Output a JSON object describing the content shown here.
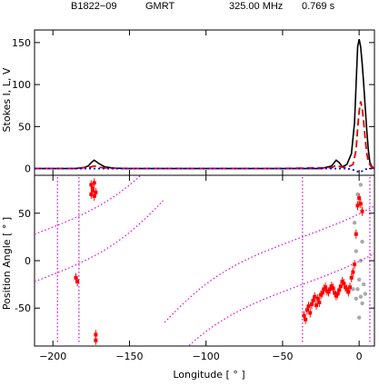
{
  "header": {
    "pulsar": "B1822−09",
    "telescope": "GMRT",
    "frequency": "325.00 MHz",
    "period": "0.769 s"
  },
  "chart_data": [
    {
      "type": "line",
      "panel": "top",
      "ylabel": "Stokes I, L, V",
      "xlim": [
        -212,
        10
      ],
      "ylim": [
        -8,
        165
      ],
      "yticks": [
        0,
        50,
        100,
        150
      ],
      "series": [
        {
          "name": "I",
          "color": "#000000",
          "style": "solid",
          "x": [
            -212,
            -186,
            -180,
            -177,
            -175,
            -173,
            -170,
            -166,
            -160,
            -150,
            -120,
            -60,
            -25,
            -18,
            -15,
            -13,
            -11,
            -8,
            -5,
            -3,
            -2,
            -1,
            0,
            1,
            2,
            3,
            4,
            5,
            6,
            7,
            8,
            10
          ],
          "y": [
            0,
            0,
            1,
            3,
            7,
            10,
            6,
            2,
            0.5,
            0,
            0,
            0,
            0,
            3,
            10,
            7,
            2,
            5,
            18,
            55,
            100,
            145,
            154,
            145,
            125,
            100,
            72,
            45,
            22,
            8,
            3,
            0
          ]
        },
        {
          "name": "L",
          "color": "#e00000",
          "style": "dashed",
          "x": [
            -212,
            -186,
            -175,
            -173,
            -170,
            -165,
            -150,
            -60,
            -18,
            -15,
            -12,
            -8,
            -4,
            -2,
            -1,
            0,
            1,
            2,
            3,
            4,
            5,
            6,
            8,
            10
          ],
          "y": [
            0,
            0,
            2,
            3,
            1.5,
            0.5,
            0,
            0,
            1,
            4,
            2,
            1,
            5,
            22,
            48,
            68,
            80,
            72,
            55,
            35,
            18,
            8,
            2,
            0
          ]
        },
        {
          "name": "V",
          "color": "#0000e0",
          "style": "dotted",
          "x": [
            -212,
            -60,
            -8,
            -5,
            -3,
            -2,
            0,
            2,
            4,
            6,
            8,
            10
          ],
          "y": [
            0,
            0,
            0,
            -1,
            -2,
            -3,
            -4,
            -3,
            -1,
            0,
            0,
            0
          ]
        }
      ]
    },
    {
      "type": "scatter",
      "panel": "bottom",
      "xlabel": "Longitude [ ° ]",
      "ylabel": "Position Angle [ ° ]",
      "xlim": [
        -212,
        10
      ],
      "ylim": [
        -90,
        90
      ],
      "xticks": [
        -200,
        -150,
        -100,
        -50,
        0
      ],
      "yticks": [
        -50,
        0,
        50
      ],
      "points": {
        "color": "#ff0000",
        "x": [
          -175,
          -174,
          -173,
          -172,
          -175,
          -174,
          -173,
          -185,
          -184,
          -172,
          -172,
          -36,
          -35,
          -34,
          -33,
          -32,
          -31,
          -30,
          -29,
          -28,
          -27,
          -26,
          -25,
          -24,
          -23,
          -22,
          -21,
          -20,
          -19,
          -18,
          -17,
          -16,
          -15,
          -14,
          -13,
          -12,
          -11,
          -10,
          -9,
          -8,
          -7,
          -6,
          -5,
          -4,
          -3,
          -2,
          -1,
          0,
          1,
          2
        ],
        "y": [
          80,
          74,
          82,
          72,
          70,
          76,
          68,
          -18,
          -22,
          -78,
          -84,
          -58,
          -62,
          -52,
          -48,
          -55,
          -46,
          -42,
          -38,
          -47,
          -40,
          -44,
          -36,
          -34,
          -30,
          -28,
          -32,
          -33,
          -30,
          -27,
          -29,
          -34,
          -37,
          -35,
          -31,
          -27,
          -22,
          -24,
          -28,
          -30,
          -33,
          -28,
          -18,
          -12,
          -4,
          28,
          58,
          66,
          60,
          52
        ]
      },
      "curves_color": "#e000e0",
      "curve_note": "RVM model curves (magenta dotted), jumps at -197, -183, -37 and +7"
    }
  ]
}
